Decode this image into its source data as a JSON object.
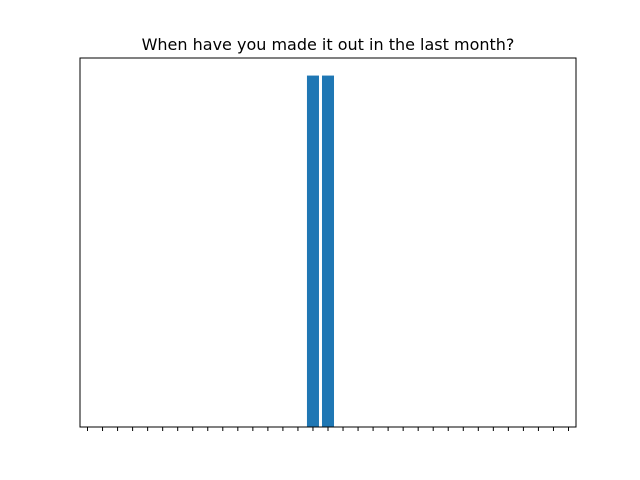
{
  "chart_data": {
    "type": "bar",
    "title": "When have you made it out in the last month?",
    "xlabel": "",
    "ylabel": "",
    "categories": [
      "",
      "",
      "",
      "",
      "",
      "",
      "",
      "",
      "",
      "",
      "",
      "",
      "",
      "",
      "",
      "",
      "",
      "",
      "",
      "",
      "",
      "",
      "",
      "",
      "",
      "",
      "",
      "",
      "",
      "",
      "",
      "",
      ""
    ],
    "values": [
      0,
      0,
      0,
      0,
      0,
      0,
      0,
      0,
      0,
      0,
      0,
      0,
      0,
      0,
      0,
      1,
      1,
      0,
      0,
      0,
      0,
      0,
      0,
      0,
      0,
      0,
      0,
      0,
      0,
      0,
      0,
      0,
      0
    ],
    "ylim": [
      0,
      1.05
    ],
    "grid": false,
    "bar_color": "#1f77b4"
  }
}
